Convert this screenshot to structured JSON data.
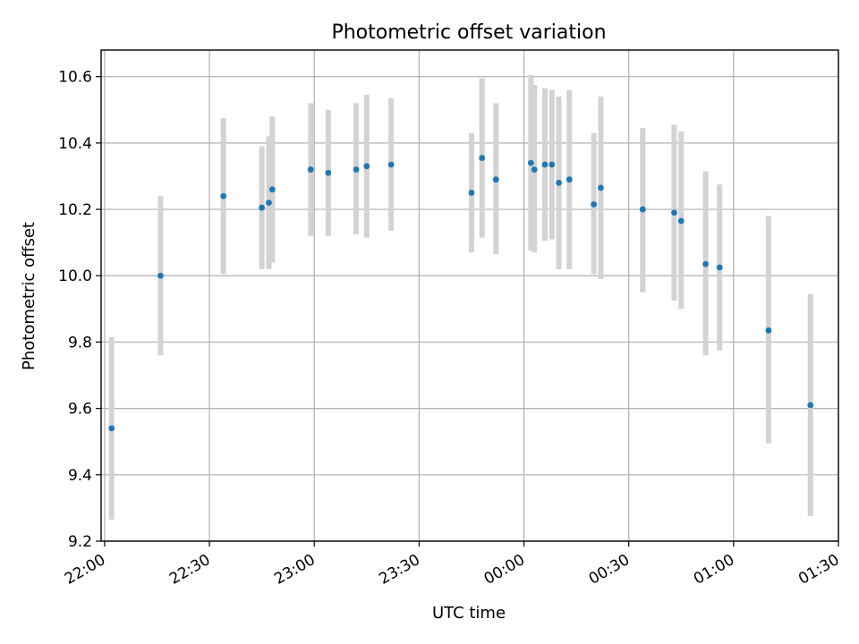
{
  "chart_data": {
    "type": "scatter",
    "title": "Photometric offset variation",
    "xlabel": "UTC time",
    "ylabel": "Photometric offset",
    "x_unit": "UTC, spanning midnight",
    "xlim": [
      "21:59",
      "01:30"
    ],
    "ylim": [
      9.2,
      10.68
    ],
    "x_ticks": [
      "22:00",
      "22:30",
      "23:00",
      "23:30",
      "00:00",
      "00:30",
      "01:00",
      "01:30"
    ],
    "y_ticks": [
      "9.2",
      "9.4",
      "9.6",
      "9.8",
      "10.0",
      "10.2",
      "10.4",
      "10.6"
    ],
    "grid": true,
    "marker_color": "#1f77b4",
    "errorbar_color": "#d3d3d3",
    "points": [
      {
        "x": "22:02",
        "y": 9.54,
        "ylow": 9.265,
        "yhigh": 9.815
      },
      {
        "x": "22:16",
        "y": 10.0,
        "ylow": 9.76,
        "yhigh": 10.24
      },
      {
        "x": "22:34",
        "y": 10.24,
        "ylow": 10.005,
        "yhigh": 10.475
      },
      {
        "x": "22:45",
        "y": 10.205,
        "ylow": 10.02,
        "yhigh": 10.39
      },
      {
        "x": "22:47",
        "y": 10.22,
        "ylow": 10.02,
        "yhigh": 10.42
      },
      {
        "x": "22:48",
        "y": 10.26,
        "ylow": 10.04,
        "yhigh": 10.48
      },
      {
        "x": "22:59",
        "y": 10.32,
        "ylow": 10.12,
        "yhigh": 10.52
      },
      {
        "x": "23:04",
        "y": 10.31,
        "ylow": 10.12,
        "yhigh": 10.5
      },
      {
        "x": "23:12",
        "y": 10.32,
        "ylow": 10.125,
        "yhigh": 10.52
      },
      {
        "x": "23:15",
        "y": 10.33,
        "ylow": 10.115,
        "yhigh": 10.545
      },
      {
        "x": "23:22",
        "y": 10.335,
        "ylow": 10.135,
        "yhigh": 10.535
      },
      {
        "x": "23:45",
        "y": 10.25,
        "ylow": 10.07,
        "yhigh": 10.43
      },
      {
        "x": "23:48",
        "y": 10.355,
        "ylow": 10.115,
        "yhigh": 10.595
      },
      {
        "x": "23:52",
        "y": 10.29,
        "ylow": 10.065,
        "yhigh": 10.52
      },
      {
        "x": "00:02",
        "y": 10.34,
        "ylow": 10.075,
        "yhigh": 10.605
      },
      {
        "x": "00:03",
        "y": 10.32,
        "ylow": 10.07,
        "yhigh": 10.575
      },
      {
        "x": "00:06",
        "y": 10.335,
        "ylow": 10.105,
        "yhigh": 10.565
      },
      {
        "x": "00:08",
        "y": 10.335,
        "ylow": 10.11,
        "yhigh": 10.56
      },
      {
        "x": "00:10",
        "y": 10.28,
        "ylow": 10.02,
        "yhigh": 10.54
      },
      {
        "x": "00:13",
        "y": 10.29,
        "ylow": 10.02,
        "yhigh": 10.56
      },
      {
        "x": "00:20",
        "y": 10.215,
        "ylow": 10.005,
        "yhigh": 10.43
      },
      {
        "x": "00:22",
        "y": 10.265,
        "ylow": 9.99,
        "yhigh": 10.54
      },
      {
        "x": "00:34",
        "y": 10.2,
        "ylow": 9.95,
        "yhigh": 10.445
      },
      {
        "x": "00:43",
        "y": 10.19,
        "ylow": 9.925,
        "yhigh": 10.455
      },
      {
        "x": "00:45",
        "y": 10.165,
        "ylow": 9.9,
        "yhigh": 10.435
      },
      {
        "x": "00:52",
        "y": 10.035,
        "ylow": 9.76,
        "yhigh": 10.315
      },
      {
        "x": "00:56",
        "y": 10.025,
        "ylow": 9.775,
        "yhigh": 10.275
      },
      {
        "x": "01:10",
        "y": 9.835,
        "ylow": 9.495,
        "yhigh": 10.18
      },
      {
        "x": "01:22",
        "y": 9.61,
        "ylow": 9.275,
        "yhigh": 9.945
      }
    ]
  }
}
